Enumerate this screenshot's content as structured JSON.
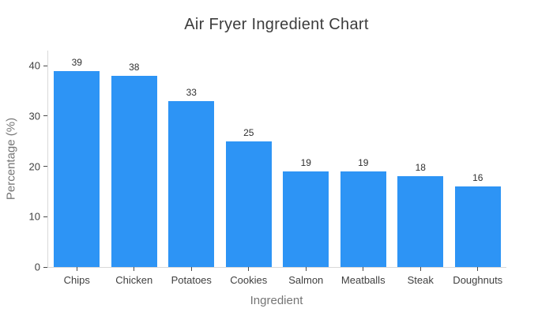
{
  "chart_data": {
    "type": "bar",
    "title": "Air Fryer Ingredient Chart",
    "xlabel": "Ingredient",
    "ylabel": "Percentage (%)",
    "categories": [
      "Chips",
      "Chicken",
      "Potatoes",
      "Cookies",
      "Salmon",
      "Meatballs",
      "Steak",
      "Doughnuts"
    ],
    "values": [
      39,
      38,
      33,
      25,
      19,
      19,
      18,
      16
    ],
    "yticks": [
      0,
      10,
      20,
      30,
      40
    ],
    "ylim": [
      0,
      43
    ],
    "bar_color": "#2d94f5",
    "grid": false,
    "legend": false,
    "value_labels_shown": true,
    "background_color": "#ffffff"
  }
}
